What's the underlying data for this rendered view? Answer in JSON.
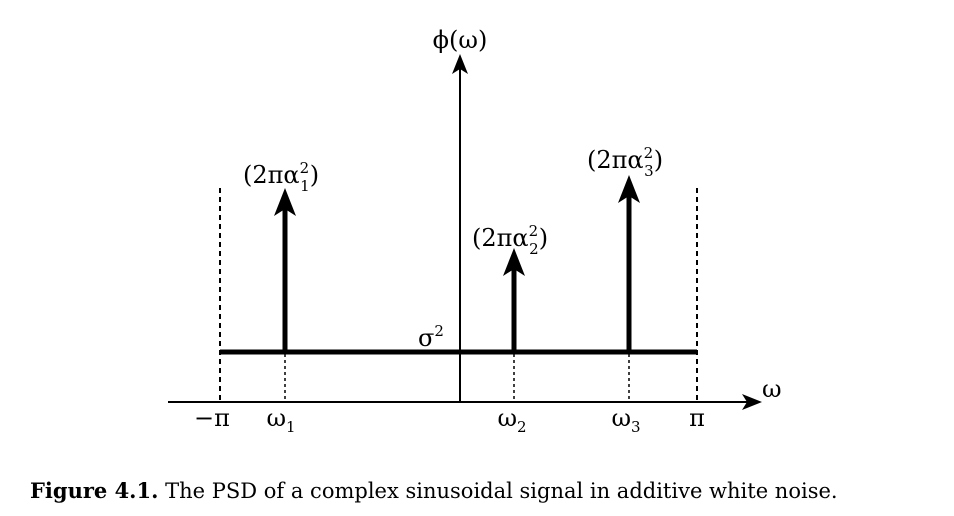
{
  "diagram": {
    "y_axis_label": "ϕ(ω)",
    "x_axis_label": "ω",
    "noise_level_label": "σ",
    "noise_level_exponent": "2",
    "ticks": [
      {
        "id": "neg-pi",
        "symbol": "−π",
        "subscript": ""
      },
      {
        "id": "omega1",
        "symbol": "ω",
        "subscript": "1"
      },
      {
        "id": "omega2",
        "symbol": "ω",
        "subscript": "2"
      },
      {
        "id": "omega3",
        "symbol": "ω",
        "subscript": "3"
      },
      {
        "id": "pi",
        "symbol": "π",
        "subscript": ""
      }
    ],
    "impulses": [
      {
        "id": "impulse-1",
        "label_prefix": "(2πα",
        "superscript": "2",
        "subscript": "1",
        "label_suffix": ")"
      },
      {
        "id": "impulse-2",
        "label_prefix": "(2πα",
        "superscript": "2",
        "subscript": "2",
        "label_suffix": ")"
      },
      {
        "id": "impulse-3",
        "label_prefix": "(2πα",
        "superscript": "2",
        "subscript": "3",
        "label_suffix": ")"
      }
    ]
  },
  "caption": {
    "label": "Figure 4.1.",
    "text": "The PSD of a complex sinusoidal signal in additive white noise."
  }
}
